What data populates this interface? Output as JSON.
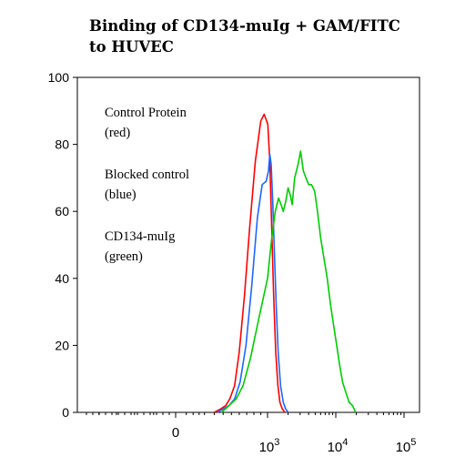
{
  "chart_data": {
    "type": "line",
    "title": [
      "Binding of CD134-muIg + GAM/FITC",
      "to HUVEC"
    ],
    "xlabel": "",
    "ylabel": "",
    "ylim": [
      0,
      100
    ],
    "yticks": [
      0,
      20,
      40,
      60,
      80,
      100
    ],
    "x_scale": "biexponential",
    "xticks": [
      {
        "value": 0,
        "base": "0",
        "exp": ""
      },
      {
        "value": 1000,
        "base": "10",
        "exp": "3"
      },
      {
        "value": 10000,
        "base": "10",
        "exp": "4"
      },
      {
        "value": 100000,
        "base": "10",
        "exp": "5"
      }
    ],
    "legend_text": [
      "Control Protein",
      "(red)",
      "Blocked control",
      "(blue)",
      "CD134-muIg",
      "(green)"
    ],
    "grid": false,
    "series": [
      {
        "color": "#ff0000",
        "points": [
          [
            300,
            0
          ],
          [
            370,
            1
          ],
          [
            430,
            2
          ],
          [
            480,
            4
          ],
          [
            540,
            8
          ],
          [
            600,
            18
          ],
          [
            670,
            35
          ],
          [
            740,
            55
          ],
          [
            820,
            75
          ],
          [
            900,
            87
          ],
          [
            950,
            89
          ],
          [
            1010,
            86
          ],
          [
            1080,
            75
          ],
          [
            1150,
            55
          ],
          [
            1230,
            35
          ],
          [
            1320,
            18
          ],
          [
            1420,
            8
          ],
          [
            1520,
            3
          ],
          [
            1650,
            1
          ],
          [
            1800,
            0
          ]
        ]
      },
      {
        "color": "#1e66ff",
        "points": [
          [
            330,
            0
          ],
          [
            400,
            1
          ],
          [
            470,
            2
          ],
          [
            540,
            4
          ],
          [
            610,
            9
          ],
          [
            690,
            20
          ],
          [
            770,
            38
          ],
          [
            850,
            58
          ],
          [
            920,
            68
          ],
          [
            980,
            69
          ],
          [
            1030,
            72
          ],
          [
            1080,
            77
          ],
          [
            1130,
            74
          ],
          [
            1190,
            63
          ],
          [
            1260,
            48
          ],
          [
            1340,
            32
          ],
          [
            1430,
            18
          ],
          [
            1550,
            8
          ],
          [
            1700,
            3
          ],
          [
            1850,
            1
          ],
          [
            2000,
            0
          ]
        ]
      },
      {
        "color": "#00cc00",
        "points": [
          [
            380,
            0
          ],
          [
            470,
            2
          ],
          [
            560,
            4
          ],
          [
            650,
            8
          ],
          [
            750,
            16
          ],
          [
            870,
            28
          ],
          [
            1000,
            40
          ],
          [
            1150,
            52
          ],
          [
            1300,
            60
          ],
          [
            1450,
            64
          ],
          [
            1580,
            62
          ],
          [
            1700,
            60
          ],
          [
            1850,
            63
          ],
          [
            2000,
            67
          ],
          [
            2150,
            65
          ],
          [
            2300,
            62
          ],
          [
            2500,
            70
          ],
          [
            2800,
            74
          ],
          [
            3050,
            78
          ],
          [
            3350,
            72
          ],
          [
            3650,
            70
          ],
          [
            4000,
            68
          ],
          [
            4400,
            68
          ],
          [
            4900,
            66
          ],
          [
            5400,
            60
          ],
          [
            6000,
            52
          ],
          [
            6700,
            46
          ],
          [
            7500,
            40
          ],
          [
            8400,
            32
          ],
          [
            9300,
            26
          ],
          [
            10300,
            20
          ],
          [
            11400,
            14
          ],
          [
            12600,
            9
          ],
          [
            14000,
            6
          ],
          [
            15700,
            3
          ],
          [
            17600,
            2
          ],
          [
            19500,
            0
          ]
        ]
      }
    ]
  }
}
